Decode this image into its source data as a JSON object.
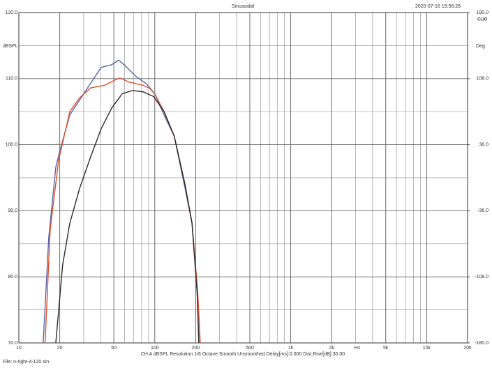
{
  "chart_data": {
    "type": "line",
    "title": "Sinusoidal",
    "timestamp": "2020-07-16 15:56:26",
    "brand": "CLIO",
    "y_label": "dBSPL",
    "y2_label": "Deg",
    "x_label": "Hz",
    "footer": "CH A  dBSPL  Resolution 1/6 Octave  Smooth:Unsmoothed  Delay[ms]:0.000  Dist.Rise[dB]:30.00",
    "file": "File: n-right-4-120.sin",
    "xscale": "log",
    "grid": true,
    "xlim": [
      10,
      20000
    ],
    "xticks": [
      10,
      20,
      50,
      100,
      200,
      500,
      {
        "value": 1000,
        "label": "1k"
      },
      {
        "value": 2000,
        "label": "2k"
      },
      {
        "value": 5000,
        "label": "5k"
      },
      {
        "value": 10000,
        "label": "10k"
      },
      {
        "value": 20000,
        "label": "20k"
      }
    ],
    "ylim": [
      70,
      120
    ],
    "yticks": [
      {
        "value": 70,
        "label": "70.0"
      },
      {
        "value": 80,
        "label": "80.0"
      },
      {
        "value": 90,
        "label": "90.0"
      },
      {
        "value": 100,
        "label": "100.0"
      },
      {
        "value": 110,
        "label": "110.0"
      },
      {
        "value": 120,
        "label": "120.0"
      }
    ],
    "y2lim": [
      -180,
      180
    ],
    "y2ticks": [
      {
        "value": -180,
        "label": "-180.0"
      },
      {
        "value": -108,
        "label": "-108.0"
      },
      {
        "value": -36,
        "label": "-36.0"
      },
      {
        "value": 36,
        "label": "36.0"
      },
      {
        "value": 108,
        "label": "108.0"
      },
      {
        "value": 180,
        "label": "180.0"
      }
    ],
    "series": [
      {
        "color": "#5a66a6",
        "x": [
          15.1,
          16.6,
          18.7,
          20.1,
          23.7,
          30,
          40.3,
          48.1,
          54.3,
          60.9,
          73,
          87,
          100,
          117,
          139,
          167,
          188,
          205,
          211
        ],
        "values": [
          70,
          86,
          96.6,
          99.2,
          104.5,
          107.7,
          111.7,
          112.1,
          112.8,
          111.9,
          110.3,
          109.2,
          107.7,
          104.5,
          101.3,
          93.4,
          88.1,
          77.6,
          70
        ]
      },
      {
        "color": "#e0502c",
        "x": [
          15.6,
          17,
          19.6,
          23.7,
          28,
          33.8,
          42.8,
          51,
          55.5,
          64,
          82,
          92,
          100,
          117,
          139,
          167,
          188,
          207,
          216
        ],
        "values": [
          70,
          87.1,
          97.6,
          105,
          107.1,
          108.6,
          109,
          109.8,
          110.1,
          109.5,
          109,
          108.5,
          107.7,
          105,
          101.3,
          94,
          88.1,
          77.6,
          70
        ]
      },
      {
        "color": "#2a2a2a",
        "x": [
          18.7,
          21,
          23.7,
          28,
          33.8,
          40.3,
          48.1,
          57.5,
          68.6,
          82,
          97.9,
          117,
          139,
          167,
          188,
          205,
          211
        ],
        "values": [
          70,
          81.8,
          88.1,
          93.4,
          98.2,
          102.4,
          105.5,
          107.7,
          108.2,
          108,
          107.3,
          105,
          101.3,
          93.9,
          88.1,
          77.6,
          70
        ]
      }
    ]
  }
}
